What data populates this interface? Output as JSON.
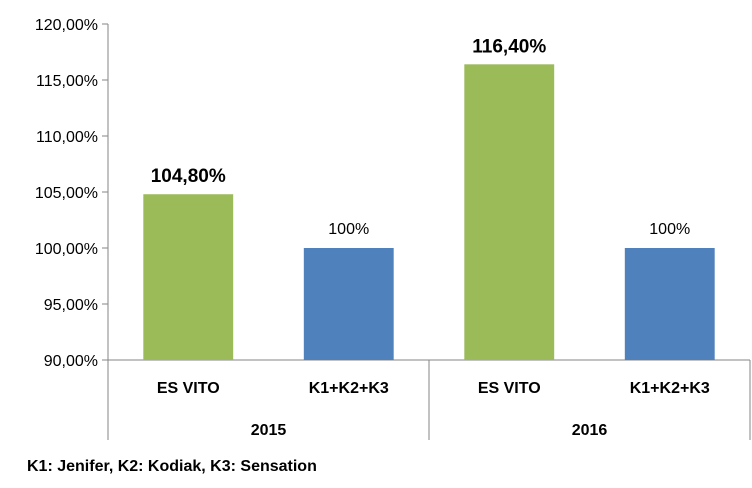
{
  "chart_data": {
    "type": "bar",
    "groups": [
      {
        "name": "2015",
        "bars": [
          {
            "category": "ES VITO",
            "value": 104.8,
            "label": "104,80%",
            "color": "#9BBB59",
            "label_bold": true
          },
          {
            "category": "K1+K2+K3",
            "value": 100,
            "label": "100%",
            "color": "#4F81BD",
            "label_bold": false
          }
        ]
      },
      {
        "name": "2016",
        "bars": [
          {
            "category": "ES VITO",
            "value": 116.4,
            "label": "116,40%",
            "color": "#9BBB59",
            "label_bold": true
          },
          {
            "category": "K1+K2+K3",
            "value": 100,
            "label": "100%",
            "color": "#4F81BD",
            "label_bold": false
          }
        ]
      }
    ],
    "ylim": [
      90,
      120
    ],
    "yticks": [
      90,
      95,
      100,
      105,
      110,
      115,
      120
    ],
    "ytick_labels": [
      "90,00%",
      "95,00%",
      "100,00%",
      "105,00%",
      "110,00%",
      "115,00%",
      "120,00%"
    ],
    "grid": false,
    "legend": "none"
  },
  "footnote": "K1: Jenifer, K2: Kodiak, K3: Sensation"
}
